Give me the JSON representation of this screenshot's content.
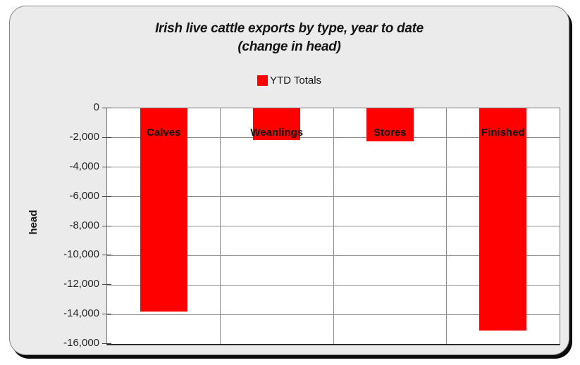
{
  "header": {
    "title_line1": "Irish live cattle exports by type, year to date",
    "title_line2": "(change in head)"
  },
  "legend": {
    "label": "YTD Totals",
    "swatch_color": "#ff0000"
  },
  "chart_data": {
    "type": "bar",
    "title": "Irish live cattle exports by type, year to date (change in head)",
    "series_name": "YTD Totals",
    "categories": [
      "Calves",
      "Weanlings",
      "Stores",
      "Finished"
    ],
    "values": [
      -13800,
      -2150,
      -2250,
      -15100
    ],
    "bar_color": "#ff0000",
    "xlabel": "",
    "ylabel": "head",
    "ylim": [
      -16000,
      0
    ],
    "ytick_step": 2000,
    "ytick_labels": [
      "0",
      "-2,000",
      "-4,000",
      "-6,000",
      "-8,000",
      "-10,000",
      "-12,000",
      "-14,000",
      "-16,000"
    ],
    "grid": true,
    "legend_position": "top-center",
    "plot_background": "#ffffff",
    "card_background": "#ebebeb"
  }
}
